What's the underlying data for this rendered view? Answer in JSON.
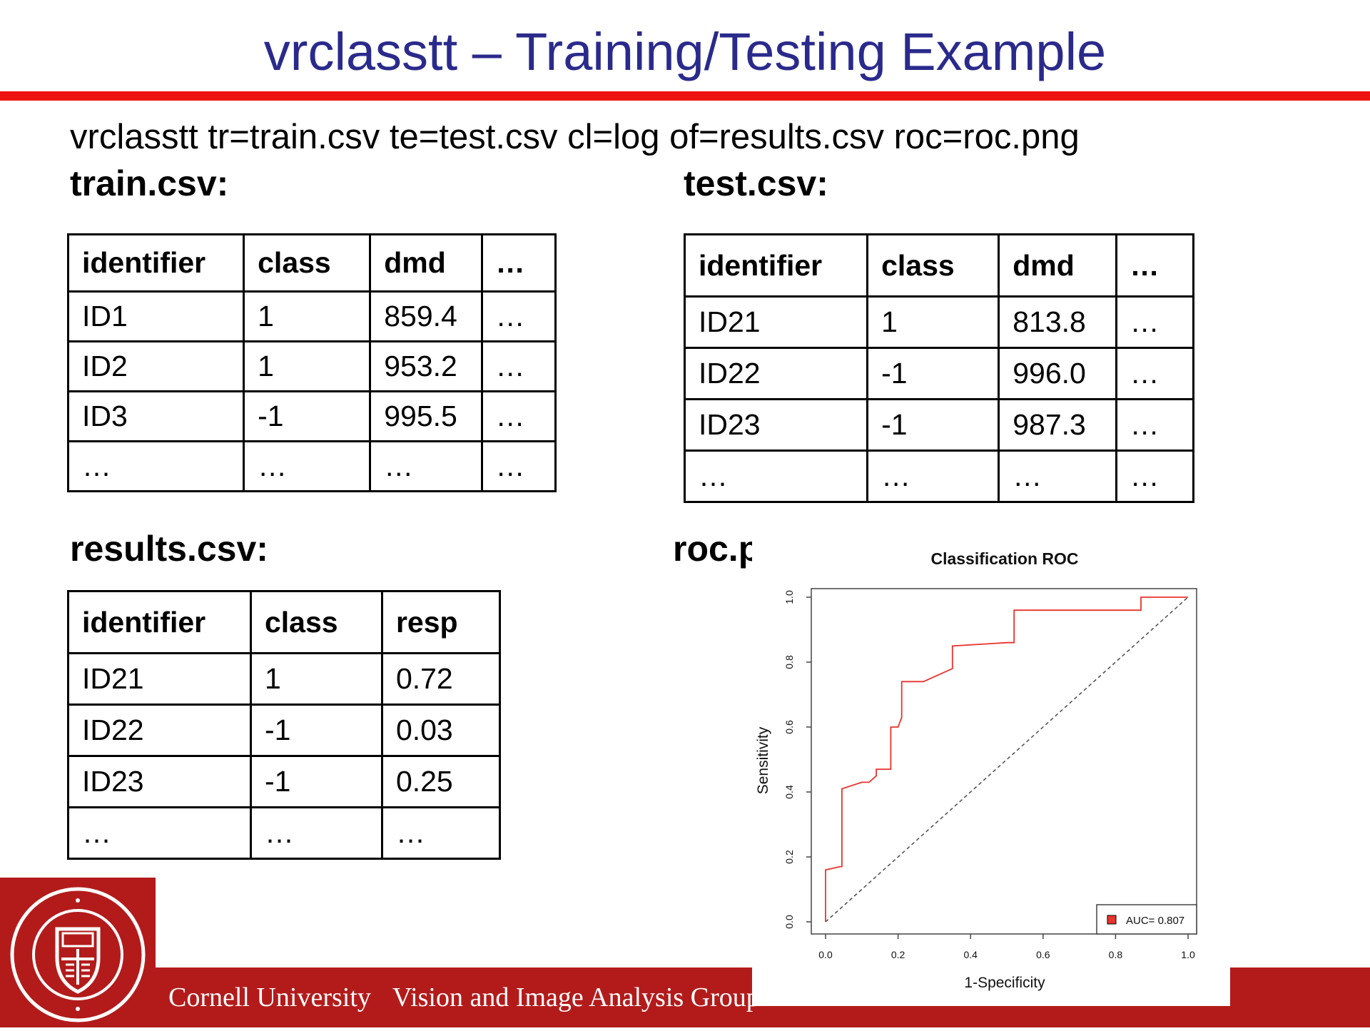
{
  "slide": {
    "title": "vrclasstt – Training/Testing Example",
    "command": "vrclasstt tr=train.csv te=test.csv cl=log of=results.csv roc=roc.png"
  },
  "train": {
    "label": "train.csv:",
    "headers": [
      "identifier",
      "class",
      "dmd",
      "…"
    ],
    "rows": [
      [
        "ID1",
        "1",
        "859.4",
        "…"
      ],
      [
        "ID2",
        "1",
        "953.2",
        "…"
      ],
      [
        "ID3",
        "-1",
        "995.5",
        "…"
      ],
      [
        "…",
        "…",
        "…",
        "…"
      ]
    ]
  },
  "test": {
    "label": "test.csv:",
    "headers": [
      "identifier",
      "class",
      "dmd",
      "…"
    ],
    "rows": [
      [
        "ID21",
        "1",
        "813.8",
        "…"
      ],
      [
        "ID22",
        "-1",
        "996.0",
        "…"
      ],
      [
        "ID23",
        "-1",
        "987.3",
        "…"
      ],
      [
        "…",
        "…",
        "…",
        "…"
      ]
    ]
  },
  "results": {
    "label": "results.csv:",
    "headers": [
      "identifier",
      "class",
      "resp"
    ],
    "rows": [
      [
        "ID21",
        "1",
        "0.72"
      ],
      [
        "ID22",
        "-1",
        "0.03"
      ],
      [
        "ID23",
        "-1",
        "0.25"
      ],
      [
        "…",
        "…",
        "…"
      ]
    ]
  },
  "roc_label": "roc.png:",
  "chart_data": {
    "type": "line",
    "title": "Classification ROC",
    "xlabel": "1-Specificity",
    "ylabel": "Sensitivity",
    "xlim": [
      0,
      1
    ],
    "ylim": [
      0,
      1
    ],
    "xticks": [
      "0.0",
      "0.2",
      "0.4",
      "0.6",
      "0.8",
      "1.0"
    ],
    "yticks": [
      "0.0",
      "0.2",
      "0.4",
      "0.6",
      "0.8",
      "1.0"
    ],
    "legend_position": "bottom-right",
    "legend_text": "AUC= 0.807",
    "series": [
      {
        "color": "#e8342c",
        "x": [
          0.0,
          0.0,
          0.04,
          0.045,
          0.045,
          0.1,
          0.12,
          0.14,
          0.14,
          0.18,
          0.18,
          0.19,
          0.2,
          0.21,
          0.21,
          0.23,
          0.27,
          0.35,
          0.35,
          0.5,
          0.52,
          0.52,
          0.85,
          0.87,
          0.87,
          1.0
        ],
        "y": [
          0.0,
          0.16,
          0.17,
          0.17,
          0.41,
          0.43,
          0.43,
          0.45,
          0.47,
          0.47,
          0.6,
          0.6,
          0.6,
          0.63,
          0.74,
          0.74,
          0.74,
          0.78,
          0.85,
          0.86,
          0.86,
          0.96,
          0.96,
          0.96,
          1.0,
          1.0
        ]
      }
    ],
    "reference_line": {
      "x": [
        0,
        1
      ],
      "y": [
        0,
        1
      ],
      "color": "#555555"
    }
  },
  "footer": {
    "university": "Cornell University",
    "group": "Vision and Image Analysis Group"
  },
  "colors": {
    "title": "#2a2a8c",
    "rule": "#ee1111",
    "footer": "#b31b1b"
  }
}
